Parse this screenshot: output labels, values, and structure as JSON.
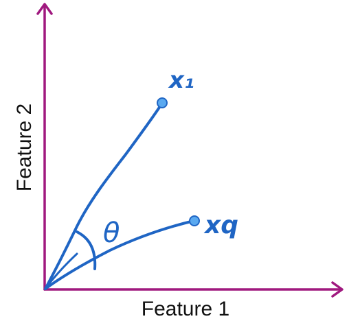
{
  "axes": {
    "x_label": "Feature 1",
    "y_label": "Feature 2"
  },
  "vectors": [
    {
      "name": "x1",
      "label": "x₁"
    },
    {
      "name": "xq",
      "label": "xq"
    }
  ],
  "angle_label": "θ",
  "colors": {
    "axis": "#a0197f",
    "vector": "#1f65c4",
    "point_fill": "#5aa9f0",
    "point_stroke": "#1f65c4",
    "text": "#111111"
  }
}
